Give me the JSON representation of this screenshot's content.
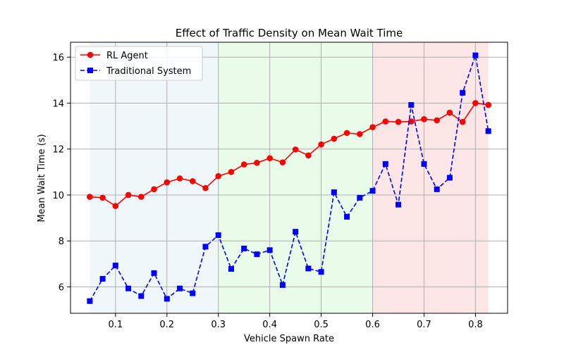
{
  "chart_data": {
    "type": "line",
    "title": "Effect of Traffic Density on Mean Wait Time",
    "xlabel": "Vehicle Spawn Rate",
    "ylabel": "Mean Wait Time (s)",
    "xlim": [
      0.0125,
      0.8625
    ],
    "ylim": [
      4.85,
      16.65
    ],
    "xticks": [
      0.1,
      0.2,
      0.3,
      0.4,
      0.5,
      0.6,
      0.7,
      0.8
    ],
    "xtick_labels": [
      "0.1",
      "0.2",
      "0.3",
      "0.4",
      "0.5",
      "0.6",
      "0.7",
      "0.8"
    ],
    "yticks": [
      6,
      8,
      10,
      12,
      14,
      16
    ],
    "ytick_labels": [
      "6",
      "8",
      "10",
      "12",
      "14",
      "16"
    ],
    "grid": true,
    "legend_position": "top-left",
    "x": [
      0.05,
      0.075,
      0.1,
      0.125,
      0.15,
      0.175,
      0.2,
      0.225,
      0.25,
      0.275,
      0.3,
      0.325,
      0.35,
      0.375,
      0.4,
      0.425,
      0.45,
      0.475,
      0.5,
      0.525,
      0.55,
      0.575,
      0.6,
      0.625,
      0.65,
      0.675,
      0.7,
      0.725,
      0.75,
      0.775,
      0.8,
      0.825
    ],
    "series": [
      {
        "name": "RL Agent",
        "color": "#ff0000",
        "line_style": "solid",
        "marker": "circle",
        "values": [
          9.92,
          9.88,
          9.52,
          10.0,
          9.92,
          10.25,
          10.55,
          10.72,
          10.6,
          10.3,
          10.82,
          11.0,
          11.33,
          11.4,
          11.6,
          11.42,
          11.98,
          11.72,
          12.2,
          12.45,
          12.7,
          12.65,
          12.95,
          13.2,
          13.18,
          13.2,
          13.3,
          13.25,
          13.58,
          13.18,
          14.0,
          13.92
        ]
      },
      {
        "name": "Traditional System",
        "color": "#0000ff",
        "line_style": "dashed",
        "marker": "square",
        "values": [
          5.38,
          6.35,
          6.93,
          5.93,
          5.6,
          6.6,
          5.48,
          5.93,
          5.72,
          7.75,
          8.25,
          6.78,
          7.67,
          7.42,
          7.6,
          6.08,
          8.4,
          6.8,
          6.65,
          10.12,
          9.05,
          9.88,
          10.18,
          11.35,
          9.58,
          13.92,
          11.35,
          10.25,
          10.75,
          14.45,
          16.08,
          12.78
        ]
      }
    ],
    "regions": [
      {
        "x0": 0.05,
        "x1": 0.3,
        "color": "#add8e6",
        "opacity": 0.2
      },
      {
        "x0": 0.3,
        "x1": 0.6,
        "color": "#90ee90",
        "opacity": 0.2
      },
      {
        "x0": 0.6,
        "x1": 0.825,
        "color": "#f08080",
        "opacity": 0.2
      }
    ]
  }
}
